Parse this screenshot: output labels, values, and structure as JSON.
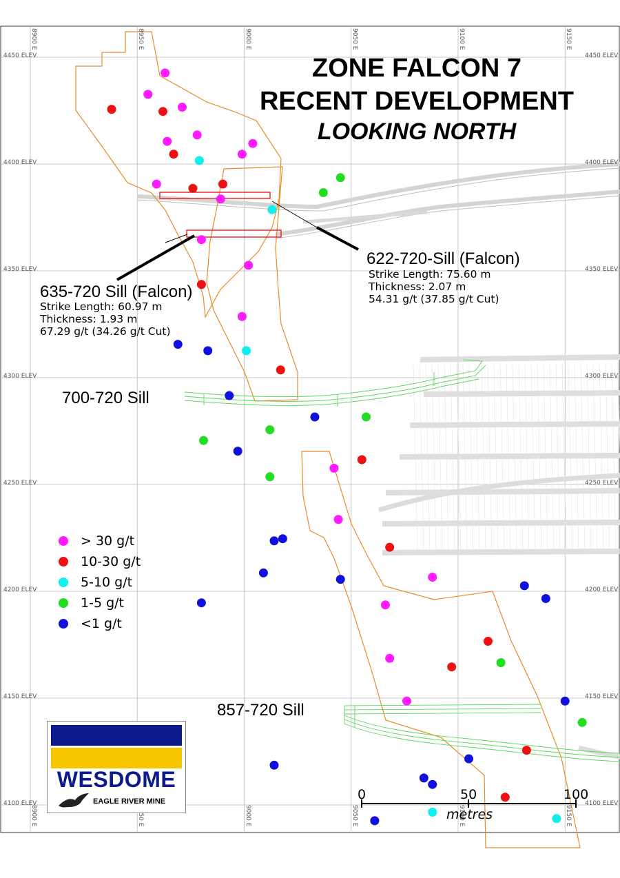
{
  "title": {
    "line1": "ZONE FALCON 7",
    "line2": "RECENT DEVELOPMENT",
    "line3": "LOOKING NORTH"
  },
  "grid": {
    "elevations": [
      "4450 ELEV",
      "4400 ELEV",
      "4350 ELEV",
      "4300 ELEV",
      "4250 ELEV",
      "4200 ELEV",
      "4150 ELEV",
      "4100 ELEV"
    ],
    "eastings": [
      "8900 E",
      "8950 E",
      "9000 E",
      "9050 E",
      "9100 E",
      "9150 E"
    ]
  },
  "sills": {
    "s635": {
      "name": "635-720 Sill (Falcon)",
      "strike": "Strike Length:  60.97 m",
      "thickness": "Thickness:  1.93 m",
      "grade": "67.29 g/t (34.26 g/t Cut)"
    },
    "s622": {
      "name": "622-720-Sill (Falcon)",
      "strike": "Strike Length:  75.60 m",
      "thickness": "Thickness:  2.07 m",
      "grade": "54.31 g/t (37.85 g/t Cut)"
    },
    "s700": {
      "name": "700-720 Sill"
    },
    "s857": {
      "name": "857-720 Sill"
    }
  },
  "legend": [
    {
      "label": "> 30 g/t",
      "color": "#ff1aff"
    },
    {
      "label": "10-30 g/t",
      "color": "#ee1111"
    },
    {
      "label": "5-10 g/t",
      "color": "#11eeee"
    },
    {
      "label": "1-5 g/t",
      "color": "#22dd22"
    },
    {
      "label": "<1 g/t",
      "color": "#1111dd"
    }
  ],
  "scale_bar": {
    "ticks": [
      "0",
      "50",
      "100"
    ],
    "unit": "metres"
  },
  "logo": {
    "name": "WESDOME",
    "mine": "EAGLE RIVER MINE",
    "blue": "#0d1a8c",
    "yellow": "#f7c600"
  },
  "samples": [
    {
      "easting": 8963,
      "elev": 4441,
      "class": 0
    },
    {
      "easting": 8955,
      "elev": 4431,
      "class": 0
    },
    {
      "easting": 8938,
      "elev": 4424,
      "class": 1
    },
    {
      "easting": 8962,
      "elev": 4423,
      "class": 1
    },
    {
      "easting": 8971,
      "elev": 4425,
      "class": 0
    },
    {
      "easting": 8978,
      "elev": 4412,
      "class": 0
    },
    {
      "easting": 8964,
      "elev": 4409,
      "class": 0
    },
    {
      "easting": 8967,
      "elev": 4403,
      "class": 1
    },
    {
      "easting": 8999,
      "elev": 4403,
      "class": 0
    },
    {
      "easting": 9004,
      "elev": 4408,
      "class": 0
    },
    {
      "easting": 8979,
      "elev": 4400,
      "class": 2
    },
    {
      "easting": 8959,
      "elev": 4389,
      "class": 0
    },
    {
      "easting": 8976,
      "elev": 4387,
      "class": 1
    },
    {
      "easting": 8990,
      "elev": 4389,
      "class": 1
    },
    {
      "easting": 8989,
      "elev": 4382,
      "class": 0
    },
    {
      "easting": 9013,
      "elev": 4377,
      "class": 2
    },
    {
      "easting": 9037,
      "elev": 4385,
      "class": 3
    },
    {
      "easting": 9045,
      "elev": 4392,
      "class": 3
    },
    {
      "easting": 8980,
      "elev": 4363,
      "class": 0
    },
    {
      "easting": 9002,
      "elev": 4351,
      "class": 0
    },
    {
      "easting": 8980,
      "elev": 4342,
      "class": 1
    },
    {
      "easting": 8999,
      "elev": 4327,
      "class": 0
    },
    {
      "easting": 8969,
      "elev": 4314,
      "class": 4
    },
    {
      "easting": 8983,
      "elev": 4311,
      "class": 4
    },
    {
      "easting": 9001,
      "elev": 4311,
      "class": 2
    },
    {
      "easting": 9017,
      "elev": 4302,
      "class": 1
    },
    {
      "easting": 8993,
      "elev": 4290,
      "class": 4
    },
    {
      "easting": 9033,
      "elev": 4280,
      "class": 4
    },
    {
      "easting": 9057,
      "elev": 4280,
      "class": 3
    },
    {
      "easting": 9012,
      "elev": 4274,
      "class": 3
    },
    {
      "easting": 8981,
      "elev": 4269,
      "class": 3
    },
    {
      "easting": 8997,
      "elev": 4264,
      "class": 4
    },
    {
      "easting": 9055,
      "elev": 4260,
      "class": 1
    },
    {
      "easting": 9042,
      "elev": 4256,
      "class": 0
    },
    {
      "easting": 9012,
      "elev": 4252,
      "class": 3
    },
    {
      "easting": 9044,
      "elev": 4232,
      "class": 0
    },
    {
      "easting": 9014,
      "elev": 4222,
      "class": 4
    },
    {
      "easting": 9018,
      "elev": 4223,
      "class": 4
    },
    {
      "easting": 9068,
      "elev": 4219,
      "class": 1
    },
    {
      "easting": 9009,
      "elev": 4207,
      "class": 4
    },
    {
      "easting": 9045,
      "elev": 4204,
      "class": 4
    },
    {
      "easting": 9088,
      "elev": 4205,
      "class": 0
    },
    {
      "easting": 9131,
      "elev": 4201,
      "class": 4
    },
    {
      "easting": 8980,
      "elev": 4193,
      "class": 4
    },
    {
      "easting": 9066,
      "elev": 4192,
      "class": 0
    },
    {
      "easting": 9141,
      "elev": 4195,
      "class": 4
    },
    {
      "easting": 9114,
      "elev": 4175,
      "class": 1
    },
    {
      "easting": 9068,
      "elev": 4167,
      "class": 0
    },
    {
      "easting": 9120,
      "elev": 4165,
      "class": 3
    },
    {
      "easting": 9097,
      "elev": 4163,
      "class": 1
    },
    {
      "easting": 9076,
      "elev": 4147,
      "class": 0
    },
    {
      "easting": 9150,
      "elev": 4147,
      "class": 4
    },
    {
      "easting": 9158,
      "elev": 4137,
      "class": 3
    },
    {
      "easting": 9132,
      "elev": 4124,
      "class": 1
    },
    {
      "easting": 9105,
      "elev": 4120,
      "class": 4
    },
    {
      "easting": 9014,
      "elev": 4117,
      "class": 4
    },
    {
      "easting": 9084,
      "elev": 4111,
      "class": 4
    },
    {
      "easting": 9088,
      "elev": 4108,
      "class": 4
    },
    {
      "easting": 9122,
      "elev": 4102,
      "class": 1
    },
    {
      "easting": 9088,
      "elev": 4095,
      "class": 2
    },
    {
      "easting": 9061,
      "elev": 4091,
      "class": 4
    },
    {
      "easting": 9146,
      "elev": 4092,
      "class": 2
    }
  ]
}
